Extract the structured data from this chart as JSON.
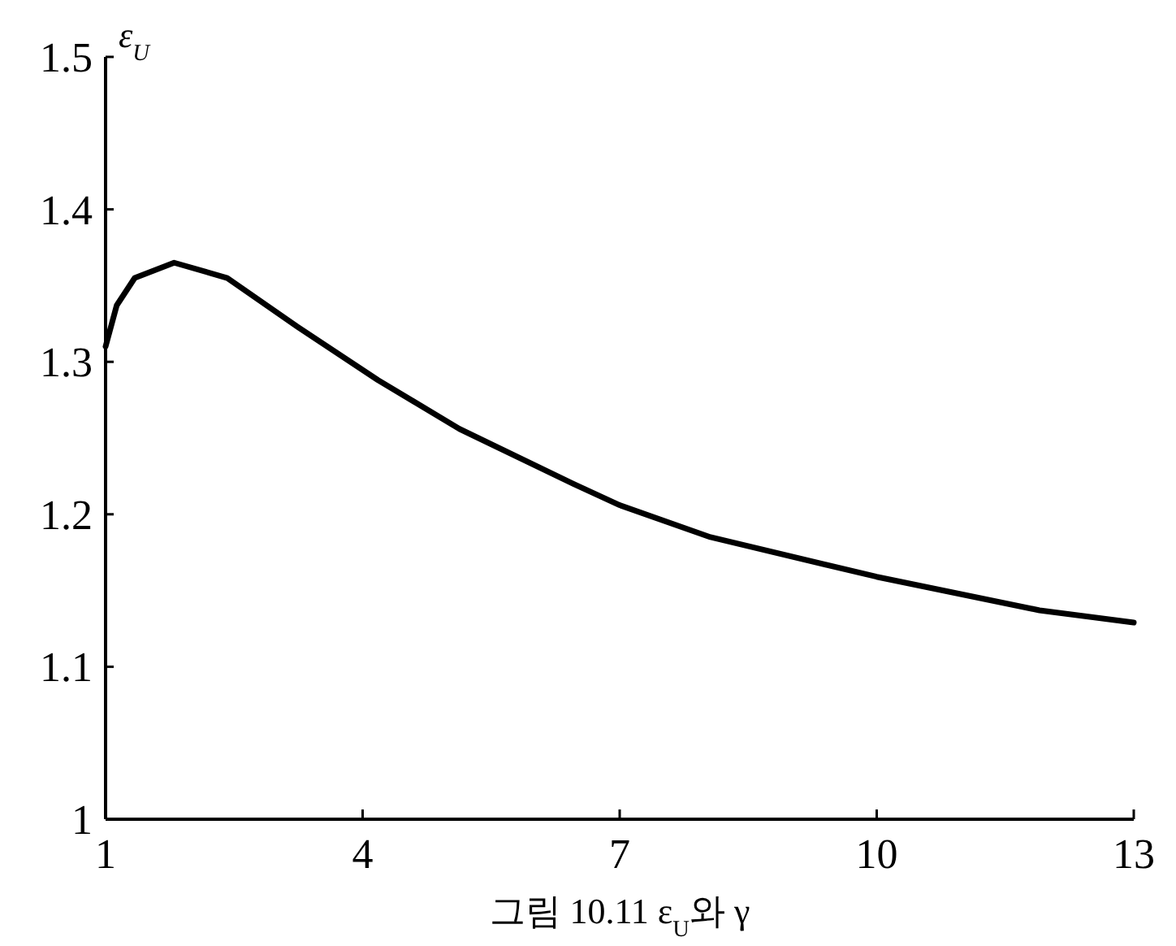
{
  "chart_data": {
    "type": "line",
    "ylabel": "ε$_{U}$",
    "annotations": [
      "그림 10.11  ε$_{U}$와 γ"
    ],
    "xlim": [
      1,
      13
    ],
    "xticks": [
      1,
      4,
      7,
      10,
      13
    ],
    "ylim": [
      1,
      1.5
    ],
    "yticks": [
      1,
      1.1,
      1.2,
      1.3,
      1.4,
      1.5
    ],
    "series": [
      {
        "color": "#000000",
        "x": [
          1,
          1.13,
          1.34,
          1.8,
          2.42,
          3.24,
          4.18,
          5.13,
          6.46,
          7,
          8.06,
          10,
          11.9,
          13
        ],
        "values": [
          1.31,
          1.337,
          1.355,
          1.365,
          1.355,
          1.323,
          1.288,
          1.256,
          1.22,
          1.206,
          1.185,
          1.159,
          1.137,
          1.129
        ]
      }
    ]
  }
}
